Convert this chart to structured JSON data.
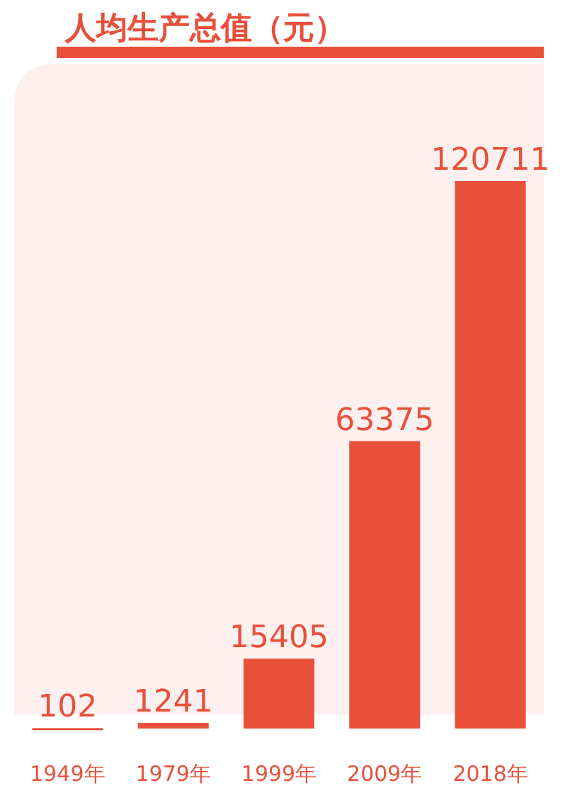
{
  "chart_data": {
    "type": "bar",
    "title": "人均生产总值（元）",
    "categories": [
      "1949年",
      "1979年",
      "1999年",
      "2009年",
      "2018年"
    ],
    "values": [
      102,
      1241,
      15405,
      63375,
      120711
    ],
    "color": "#e9503a",
    "data_labels": true
  }
}
